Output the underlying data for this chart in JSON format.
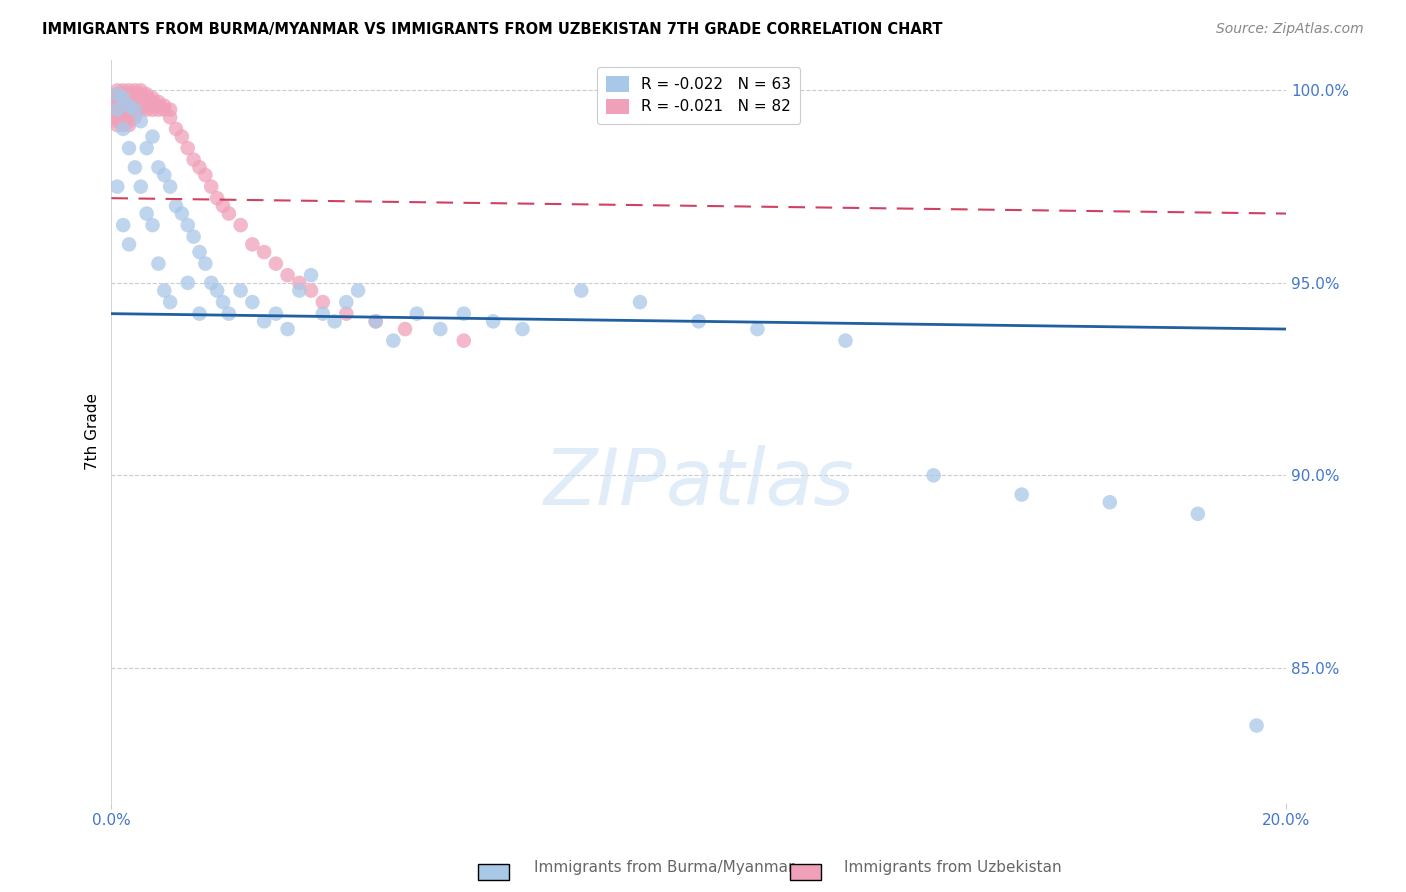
{
  "title": "IMMIGRANTS FROM BURMA/MYANMAR VS IMMIGRANTS FROM UZBEKISTAN 7TH GRADE CORRELATION CHART",
  "source": "Source: ZipAtlas.com",
  "ylabel": "7th Grade",
  "xlim": [
    0.0,
    0.2
  ],
  "ylim": [
    0.815,
    1.008
  ],
  "yticks": [
    0.85,
    0.9,
    0.95,
    1.0
  ],
  "ytick_labels": [
    "85.0%",
    "90.0%",
    "95.0%",
    "100.0%"
  ],
  "legend1_label": "Immigrants from Burma/Myanmar",
  "legend2_label": "Immigrants from Uzbekistan",
  "R_burma": -0.022,
  "N_burma": 63,
  "R_uzbek": -0.021,
  "N_uzbek": 82,
  "blue_color": "#a8c8e8",
  "pink_color": "#f0a0b8",
  "blue_line_color": "#2060a0",
  "pink_line_color": "#d04060",
  "background_color": "#ffffff",
  "grid_color": "#cccccc",
  "axis_color": "#4477cc",
  "watermark": "ZIPatlas",
  "burma_trend_x": [
    0.0,
    0.2
  ],
  "burma_trend_y": [
    0.942,
    0.938
  ],
  "uzbek_trend_x": [
    0.0,
    0.2
  ],
  "uzbek_trend_y": [
    0.972,
    0.968
  ],
  "burma_x": [
    0.001,
    0.001,
    0.001,
    0.002,
    0.002,
    0.002,
    0.003,
    0.003,
    0.003,
    0.004,
    0.004,
    0.005,
    0.005,
    0.006,
    0.006,
    0.007,
    0.007,
    0.008,
    0.008,
    0.009,
    0.009,
    0.01,
    0.01,
    0.011,
    0.012,
    0.013,
    0.013,
    0.014,
    0.015,
    0.015,
    0.016,
    0.017,
    0.018,
    0.019,
    0.02,
    0.022,
    0.024,
    0.026,
    0.028,
    0.03,
    0.032,
    0.034,
    0.036,
    0.038,
    0.04,
    0.042,
    0.045,
    0.048,
    0.052,
    0.056,
    0.06,
    0.065,
    0.07,
    0.08,
    0.09,
    0.1,
    0.11,
    0.125,
    0.14,
    0.155,
    0.17,
    0.185,
    0.195
  ],
  "burma_y": [
    0.999,
    0.995,
    0.975,
    0.998,
    0.99,
    0.965,
    0.996,
    0.985,
    0.96,
    0.995,
    0.98,
    0.992,
    0.975,
    0.985,
    0.968,
    0.988,
    0.965,
    0.98,
    0.955,
    0.978,
    0.948,
    0.975,
    0.945,
    0.97,
    0.968,
    0.965,
    0.95,
    0.962,
    0.958,
    0.942,
    0.955,
    0.95,
    0.948,
    0.945,
    0.942,
    0.948,
    0.945,
    0.94,
    0.942,
    0.938,
    0.948,
    0.952,
    0.942,
    0.94,
    0.945,
    0.948,
    0.94,
    0.935,
    0.942,
    0.938,
    0.942,
    0.94,
    0.938,
    0.948,
    0.945,
    0.94,
    0.938,
    0.935,
    0.9,
    0.895,
    0.893,
    0.89,
    0.835
  ],
  "uzbek_x": [
    0.001,
    0.001,
    0.001,
    0.001,
    0.001,
    0.001,
    0.001,
    0.001,
    0.001,
    0.001,
    0.002,
    0.002,
    0.002,
    0.002,
    0.002,
    0.002,
    0.002,
    0.002,
    0.002,
    0.002,
    0.003,
    0.003,
    0.003,
    0.003,
    0.003,
    0.003,
    0.003,
    0.003,
    0.003,
    0.003,
    0.004,
    0.004,
    0.004,
    0.004,
    0.004,
    0.004,
    0.004,
    0.004,
    0.005,
    0.005,
    0.005,
    0.005,
    0.005,
    0.005,
    0.006,
    0.006,
    0.006,
    0.006,
    0.006,
    0.007,
    0.007,
    0.007,
    0.007,
    0.008,
    0.008,
    0.008,
    0.009,
    0.009,
    0.01,
    0.01,
    0.011,
    0.012,
    0.013,
    0.014,
    0.015,
    0.016,
    0.017,
    0.018,
    0.019,
    0.02,
    0.022,
    0.024,
    0.026,
    0.028,
    0.03,
    0.032,
    0.034,
    0.036,
    0.04,
    0.045,
    0.05,
    0.06
  ],
  "uzbek_y": [
    1.0,
    0.999,
    0.998,
    0.997,
    0.996,
    0.995,
    0.994,
    0.993,
    0.992,
    0.991,
    1.0,
    0.999,
    0.998,
    0.997,
    0.996,
    0.995,
    0.994,
    0.993,
    0.992,
    0.991,
    1.0,
    0.999,
    0.998,
    0.997,
    0.996,
    0.995,
    0.994,
    0.993,
    0.992,
    0.991,
    1.0,
    0.999,
    0.998,
    0.997,
    0.996,
    0.995,
    0.994,
    0.993,
    1.0,
    0.999,
    0.998,
    0.997,
    0.996,
    0.995,
    0.999,
    0.998,
    0.997,
    0.996,
    0.995,
    0.998,
    0.997,
    0.996,
    0.995,
    0.997,
    0.996,
    0.995,
    0.996,
    0.995,
    0.995,
    0.993,
    0.99,
    0.988,
    0.985,
    0.982,
    0.98,
    0.978,
    0.975,
    0.972,
    0.97,
    0.968,
    0.965,
    0.96,
    0.958,
    0.955,
    0.952,
    0.95,
    0.948,
    0.945,
    0.942,
    0.94,
    0.938,
    0.935
  ]
}
